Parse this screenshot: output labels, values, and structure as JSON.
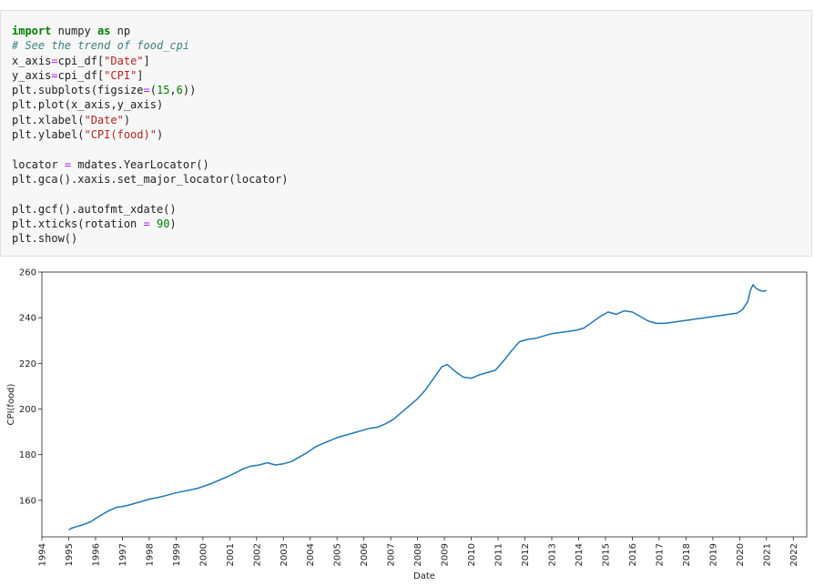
{
  "code_lines": [
    [
      {
        "t": "import",
        "k": "kw"
      },
      {
        "t": " numpy ",
        "k": "tx"
      },
      {
        "t": "as",
        "k": "kw"
      },
      {
        "t": " np",
        "k": "tx"
      }
    ],
    [
      {
        "t": "# See the trend of food_cpi",
        "k": "cm"
      }
    ],
    [
      {
        "t": "x_axis",
        "k": "tx"
      },
      {
        "t": "=",
        "k": "op"
      },
      {
        "t": "cpi_df[",
        "k": "tx"
      },
      {
        "t": "\"Date\"",
        "k": "st"
      },
      {
        "t": "]",
        "k": "tx"
      }
    ],
    [
      {
        "t": "y_axis",
        "k": "tx"
      },
      {
        "t": "=",
        "k": "op"
      },
      {
        "t": "cpi_df[",
        "k": "tx"
      },
      {
        "t": "\"CPI\"",
        "k": "st"
      },
      {
        "t": "]",
        "k": "tx"
      }
    ],
    [
      {
        "t": "plt.subplots(figsize",
        "k": "tx"
      },
      {
        "t": "=",
        "k": "op"
      },
      {
        "t": "(",
        "k": "tx"
      },
      {
        "t": "15",
        "k": "nm"
      },
      {
        "t": ",",
        "k": "tx"
      },
      {
        "t": "6",
        "k": "nm"
      },
      {
        "t": "))",
        "k": "tx"
      }
    ],
    [
      {
        "t": "plt.plot(x_axis,y_axis)",
        "k": "tx"
      }
    ],
    [
      {
        "t": "plt.xlabel(",
        "k": "tx"
      },
      {
        "t": "\"Date\"",
        "k": "st"
      },
      {
        "t": ")",
        "k": "tx"
      }
    ],
    [
      {
        "t": "plt.ylabel(",
        "k": "tx"
      },
      {
        "t": "\"CPI(food)\"",
        "k": "st"
      },
      {
        "t": ")",
        "k": "tx"
      }
    ],
    [],
    [
      {
        "t": "locator ",
        "k": "tx"
      },
      {
        "t": "=",
        "k": "op"
      },
      {
        "t": " mdates.YearLocator()",
        "k": "tx"
      }
    ],
    [
      {
        "t": "plt.gca().xaxis.set_major_locator(locator)",
        "k": "tx"
      }
    ],
    [],
    [
      {
        "t": "plt.gcf().autofmt_xdate()",
        "k": "tx"
      }
    ],
    [
      {
        "t": "plt.xticks(rotation ",
        "k": "tx"
      },
      {
        "t": "=",
        "k": "op"
      },
      {
        "t": " ",
        "k": "tx"
      },
      {
        "t": "90",
        "k": "nm"
      },
      {
        "t": ")",
        "k": "tx"
      }
    ],
    [
      {
        "t": "plt.show()",
        "k": "tx"
      }
    ]
  ],
  "chart_data": {
    "type": "line",
    "xlabel": "Date",
    "ylabel": "CPI(food)",
    "line_color": "#1f77b4",
    "xlim": [
      1994,
      2022.5
    ],
    "ylim": [
      144,
      260
    ],
    "x_ticks": [
      "1994",
      "1995",
      "1996",
      "1997",
      "1998",
      "1999",
      "2000",
      "2001",
      "2002",
      "2003",
      "2004",
      "2005",
      "2006",
      "2007",
      "2008",
      "2009",
      "2010",
      "2011",
      "2012",
      "2013",
      "2014",
      "2015",
      "2016",
      "2017",
      "2018",
      "2019",
      "2020",
      "2021",
      "2022"
    ],
    "y_ticks": [
      160,
      180,
      200,
      220,
      240,
      260
    ],
    "series": [
      {
        "x": [
          1995.0,
          1995.1,
          1995.3,
          1995.5,
          1995.8,
          1996.0,
          1996.2,
          1996.5,
          1996.8,
          1997.0,
          1997.2,
          1997.5,
          1997.8,
          1998.0,
          1998.3,
          1998.6,
          1998.9,
          1999.2,
          1999.5,
          1999.8,
          2000.0,
          2000.3,
          2000.6,
          2000.9,
          2001.2,
          2001.5,
          2001.8,
          2002.1,
          2002.4,
          2002.7,
          2003.0,
          2003.3,
          2003.6,
          2003.9,
          2004.2,
          2004.5,
          2004.8,
          2005.0,
          2005.3,
          2005.6,
          2005.9,
          2006.2,
          2006.5,
          2006.8,
          2007.1,
          2007.4,
          2007.7,
          2008.0,
          2008.3,
          2008.6,
          2008.9,
          2009.1,
          2009.4,
          2009.7,
          2010.0,
          2010.3,
          2010.6,
          2010.9,
          2011.2,
          2011.5,
          2011.8,
          2012.1,
          2012.4,
          2012.7,
          2013.0,
          2013.3,
          2013.6,
          2013.9,
          2014.2,
          2014.5,
          2014.8,
          2015.1,
          2015.4,
          2015.7,
          2016.0,
          2016.3,
          2016.6,
          2016.9,
          2017.2,
          2017.5,
          2017.8,
          2018.1,
          2018.4,
          2018.7,
          2019.0,
          2019.3,
          2019.6,
          2019.9,
          2020.1,
          2020.3,
          2020.4,
          2020.5,
          2020.6,
          2020.75,
          2020.9,
          2021.0
        ],
        "y": [
          147.0,
          147.8,
          148.5,
          149.2,
          150.5,
          152.0,
          153.5,
          155.5,
          157.0,
          157.3,
          157.8,
          158.8,
          159.8,
          160.5,
          161.2,
          162.0,
          163.0,
          163.8,
          164.5,
          165.3,
          166.0,
          167.3,
          168.8,
          170.3,
          172.0,
          173.8,
          175.0,
          175.5,
          176.5,
          175.5,
          176.0,
          177.0,
          179.0,
          181.0,
          183.5,
          185.0,
          186.5,
          187.5,
          188.5,
          189.5,
          190.5,
          191.5,
          192.0,
          193.5,
          195.5,
          198.5,
          201.5,
          204.5,
          208.5,
          213.5,
          218.5,
          219.5,
          216.5,
          214.0,
          213.5,
          215.0,
          216.0,
          217.0,
          221.0,
          225.5,
          229.5,
          230.5,
          231.0,
          232.0,
          233.0,
          233.5,
          234.0,
          234.5,
          235.5,
          238.0,
          240.5,
          242.5,
          241.5,
          243.0,
          242.5,
          240.5,
          238.5,
          237.5,
          237.5,
          238.0,
          238.5,
          239.0,
          239.5,
          240.0,
          240.5,
          241.0,
          241.5,
          242.0,
          243.5,
          247.0,
          252.0,
          254.5,
          253.0,
          252.0,
          251.5,
          252.0
        ]
      }
    ]
  }
}
